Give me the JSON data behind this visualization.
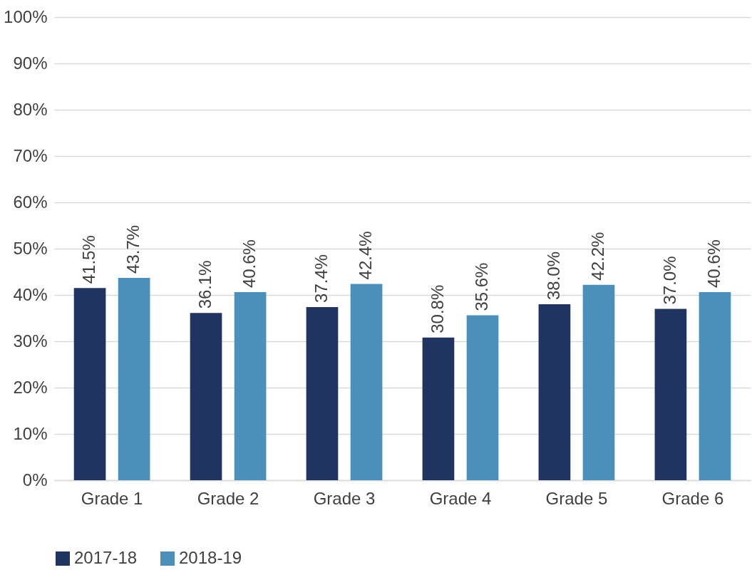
{
  "chart_data": {
    "type": "bar",
    "categories": [
      "Grade 1",
      "Grade 2",
      "Grade 3",
      "Grade 4",
      "Grade 5",
      "Grade 6"
    ],
    "series": [
      {
        "name": "2017-18",
        "color": "#1f3461",
        "values": [
          41.5,
          36.1,
          37.4,
          30.8,
          38.0,
          37.0
        ],
        "value_labels": [
          "41.5%",
          "36.1%",
          "37.4%",
          "30.8%",
          "38.0%",
          "37.0%"
        ]
      },
      {
        "name": "2018-19",
        "color": "#4a90bb",
        "values": [
          43.7,
          40.6,
          42.4,
          35.6,
          42.2,
          40.6
        ],
        "value_labels": [
          "43.7%",
          "40.6%",
          "42.4%",
          "35.6%",
          "42.2%",
          "40.6%"
        ]
      }
    ],
    "ylim": [
      0,
      100
    ],
    "yticks": [
      {
        "value": 0,
        "label": "0%"
      },
      {
        "value": 10,
        "label": "10%"
      },
      {
        "value": 20,
        "label": "20%"
      },
      {
        "value": 30,
        "label": "30%"
      },
      {
        "value": 40,
        "label": "40%"
      },
      {
        "value": 50,
        "label": "50%"
      },
      {
        "value": 60,
        "label": "60%"
      },
      {
        "value": 70,
        "label": "70%"
      },
      {
        "value": 80,
        "label": "80%"
      },
      {
        "value": 90,
        "label": "90%"
      },
      {
        "value": 100,
        "label": "100%"
      }
    ],
    "grid": "y",
    "legend": "bottom"
  }
}
